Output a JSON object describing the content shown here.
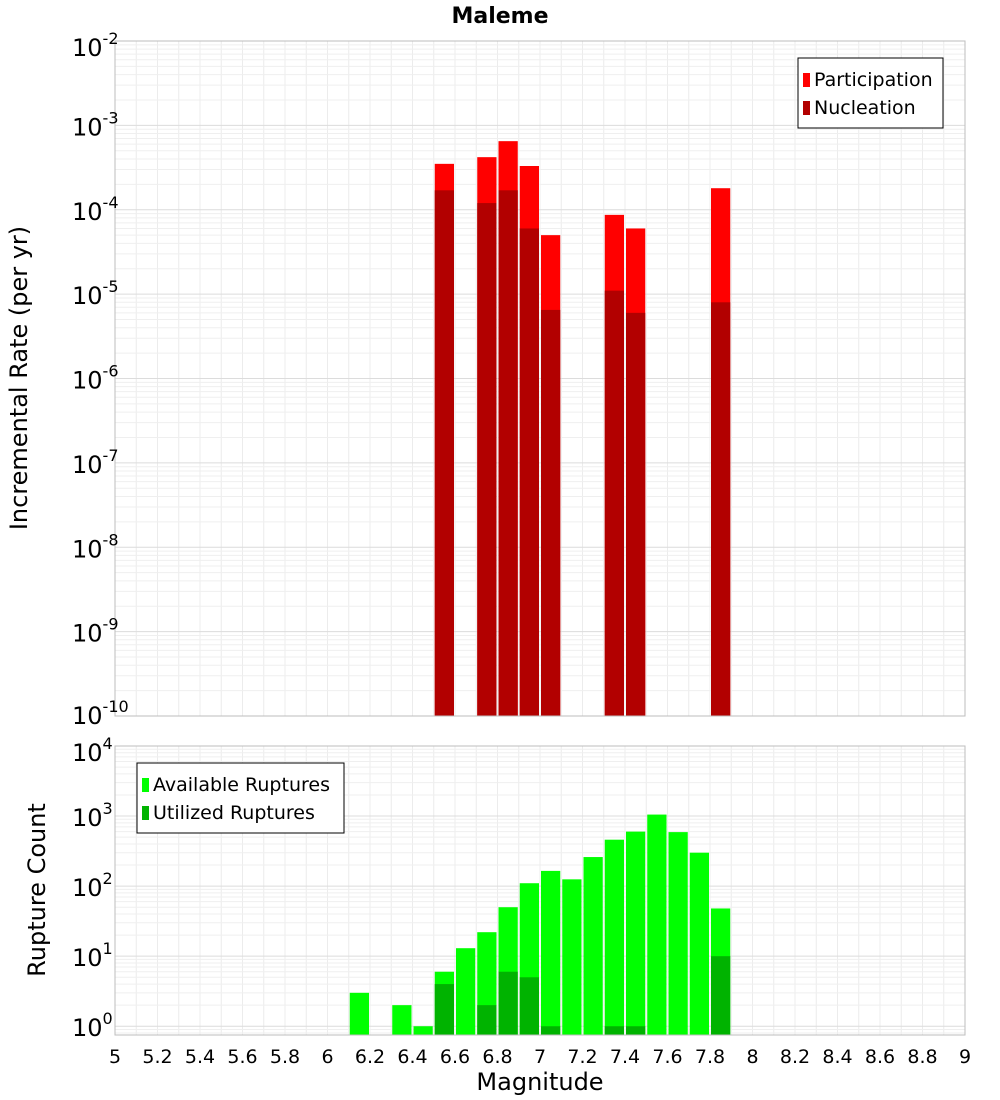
{
  "chart_data": [
    {
      "type": "bar",
      "title": "Maleme",
      "xlabel": "",
      "ylabel": "Incremental Rate (per yr)",
      "y_scale": "log",
      "xlim": [
        5,
        9
      ],
      "ylim": [
        1e-10,
        0.01
      ],
      "y_ticks": [
        {
          "base": "10",
          "exp": "-2"
        },
        {
          "base": "10",
          "exp": "-3"
        },
        {
          "base": "10",
          "exp": "-4"
        },
        {
          "base": "10",
          "exp": "-5"
        },
        {
          "base": "10",
          "exp": "-6"
        },
        {
          "base": "10",
          "exp": "-7"
        },
        {
          "base": "10",
          "exp": "-8"
        },
        {
          "base": "10",
          "exp": "-9"
        },
        {
          "base": "10",
          "exp": "-10"
        }
      ],
      "grid": true,
      "legend_position": "top-right",
      "bin_width": 0.1,
      "series": [
        {
          "name": "Participation",
          "color": "#ff0000",
          "x": [
            6.55,
            6.75,
            6.85,
            6.95,
            7.05,
            7.35,
            7.45,
            7.85
          ],
          "values": [
            0.00035,
            0.00042,
            0.00065,
            0.00033,
            5e-05,
            8.7e-05,
            6e-05,
            0.00018
          ]
        },
        {
          "name": "Nucleation",
          "color": "#b20000",
          "x": [
            6.55,
            6.75,
            6.85,
            6.95,
            7.05,
            7.35,
            7.45,
            7.85
          ],
          "values": [
            0.00017,
            0.00012,
            0.00017,
            6e-05,
            6.5e-06,
            1.1e-05,
            6e-06,
            8e-06
          ]
        }
      ]
    },
    {
      "type": "bar",
      "title": "",
      "xlabel": "Magnitude",
      "ylabel": "Rupture Count",
      "y_scale": "log",
      "xlim": [
        5,
        9
      ],
      "ylim": [
        0.75,
        10000
      ],
      "y_ticks": [
        {
          "base": "10",
          "exp": "4"
        },
        {
          "base": "10",
          "exp": "3"
        },
        {
          "base": "10",
          "exp": "2"
        },
        {
          "base": "10",
          "exp": "1"
        },
        {
          "base": "10",
          "exp": "0"
        }
      ],
      "x_ticks": [
        "5",
        "5.2",
        "5.4",
        "5.6",
        "5.8",
        "6",
        "6.2",
        "6.4",
        "6.6",
        "6.8",
        "7",
        "7.2",
        "7.4",
        "7.6",
        "7.8",
        "8",
        "8.2",
        "8.4",
        "8.6",
        "8.8",
        "9"
      ],
      "grid": true,
      "legend_position": "top-left",
      "bin_width": 0.1,
      "series": [
        {
          "name": "Available Ruptures",
          "color": "#00ff00",
          "x": [
            6.15,
            6.35,
            6.45,
            6.55,
            6.65,
            6.75,
            6.85,
            6.95,
            7.05,
            7.15,
            7.25,
            7.35,
            7.45,
            7.55,
            7.65,
            7.75,
            7.85
          ],
          "values": [
            3,
            2,
            1,
            6,
            13,
            22,
            50,
            110,
            165,
            125,
            260,
            460,
            600,
            1050,
            590,
            300,
            48
          ]
        },
        {
          "name": "Utilized Ruptures",
          "color": "#00b300",
          "x": [
            6.55,
            6.75,
            6.85,
            6.95,
            7.05,
            7.35,
            7.45,
            7.85
          ],
          "values": [
            4,
            2,
            6,
            5,
            1,
            1,
            1,
            10
          ]
        }
      ]
    }
  ]
}
